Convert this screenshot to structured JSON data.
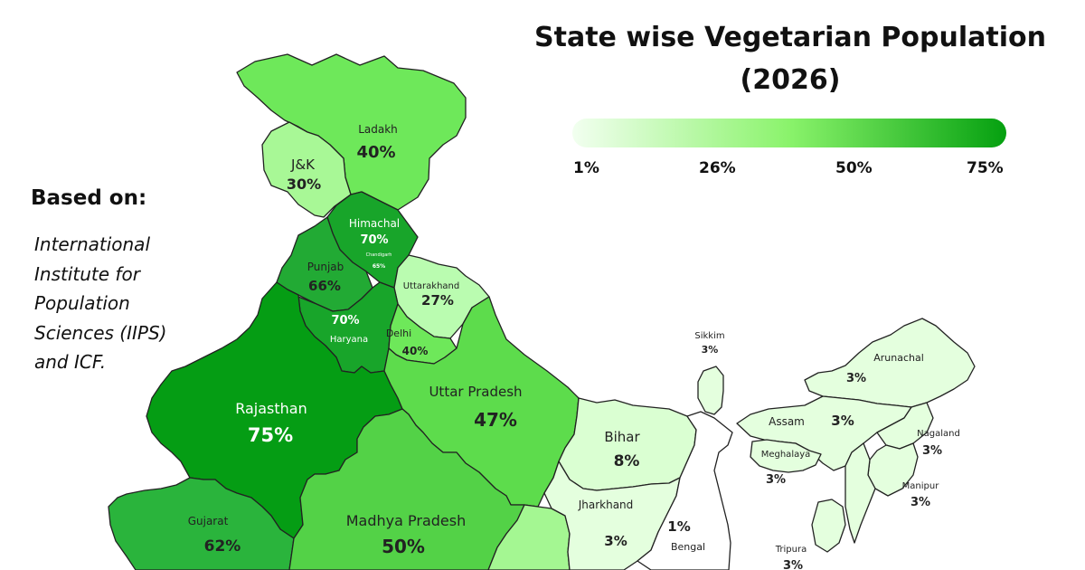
{
  "title": [
    "State wise Vegetarian Population",
    "(2026)"
  ],
  "legend": {
    "labels": [
      "1%",
      "26%",
      "50%",
      "75%"
    ],
    "colors": [
      "#f2fff0",
      "#8af36b",
      "#05a010"
    ]
  },
  "source": {
    "heading": "Based on:",
    "lines": [
      "International",
      "Institute for",
      "Population",
      "Sciences (IIPS)",
      "and ICF."
    ]
  },
  "regions": [
    {
      "id": "ladakh",
      "name": "Ladakh",
      "value": "40%",
      "color": "#6ee85a"
    },
    {
      "id": "jk",
      "name": "J&K",
      "value": "30%",
      "color": "#a8f896"
    },
    {
      "id": "himachal",
      "name": "Himachal",
      "value": "70%",
      "color": "#18a52a"
    },
    {
      "id": "chandigarh",
      "name": "Chandigarh",
      "value": "65%"
    },
    {
      "id": "punjab",
      "name": "Punjab",
      "value": "66%",
      "color": "#22aa34"
    },
    {
      "id": "uttarakhand",
      "name": "Uttarakhand",
      "value": "27%",
      "color": "#bafcb0"
    },
    {
      "id": "haryana",
      "name": "Haryana",
      "value": "70%",
      "color": "#18a52a"
    },
    {
      "id": "delhi",
      "name": "Delhi",
      "value": "40%",
      "color": "#6ee85a"
    },
    {
      "id": "rajasthan",
      "name": "Rajasthan",
      "value": "75%",
      "color": "#059d14"
    },
    {
      "id": "up",
      "name": "Uttar Pradesh",
      "value": "47%",
      "color": "#5ddc4c"
    },
    {
      "id": "gujarat",
      "name": "Gujarat",
      "value": "62%",
      "color": "#2ab43c"
    },
    {
      "id": "mp",
      "name": "Madhya Pradesh",
      "value": "50%",
      "color": "#53d247"
    },
    {
      "id": "bihar",
      "name": "Bihar",
      "value": "8%",
      "color": "#daffd2"
    },
    {
      "id": "jharkhand",
      "name": "Jharkhand",
      "value": "3%",
      "color": "#e4ffde"
    },
    {
      "id": "bengal",
      "name": "Bengal",
      "value": "1%",
      "color": "#ffffff"
    },
    {
      "id": "sikkim",
      "name": "Sikkim",
      "value": "3%",
      "color": "#e4ffde"
    },
    {
      "id": "arunachal",
      "name": "Arunachal",
      "value": "3%",
      "color": "#e4ffde"
    },
    {
      "id": "assam",
      "name": "Assam",
      "value": "3%",
      "color": "#e4ffde"
    },
    {
      "id": "meghalaya",
      "name": "Meghalaya",
      "value": "3%",
      "color": "#e4ffde"
    },
    {
      "id": "nagaland",
      "name": "Nagaland",
      "value": "3%",
      "color": "#e4ffde"
    },
    {
      "id": "manipur",
      "name": "Manipur",
      "value": "3%",
      "color": "#e4ffde"
    },
    {
      "id": "tripura",
      "name": "Tripura",
      "value": "3%",
      "color": "#e4ffde"
    },
    {
      "id": "chhattisgarh",
      "name": "",
      "value": "",
      "color": "#a4f792"
    },
    {
      "id": "mizoram",
      "name": "",
      "value": "",
      "color": "#e4ffde"
    }
  ]
}
